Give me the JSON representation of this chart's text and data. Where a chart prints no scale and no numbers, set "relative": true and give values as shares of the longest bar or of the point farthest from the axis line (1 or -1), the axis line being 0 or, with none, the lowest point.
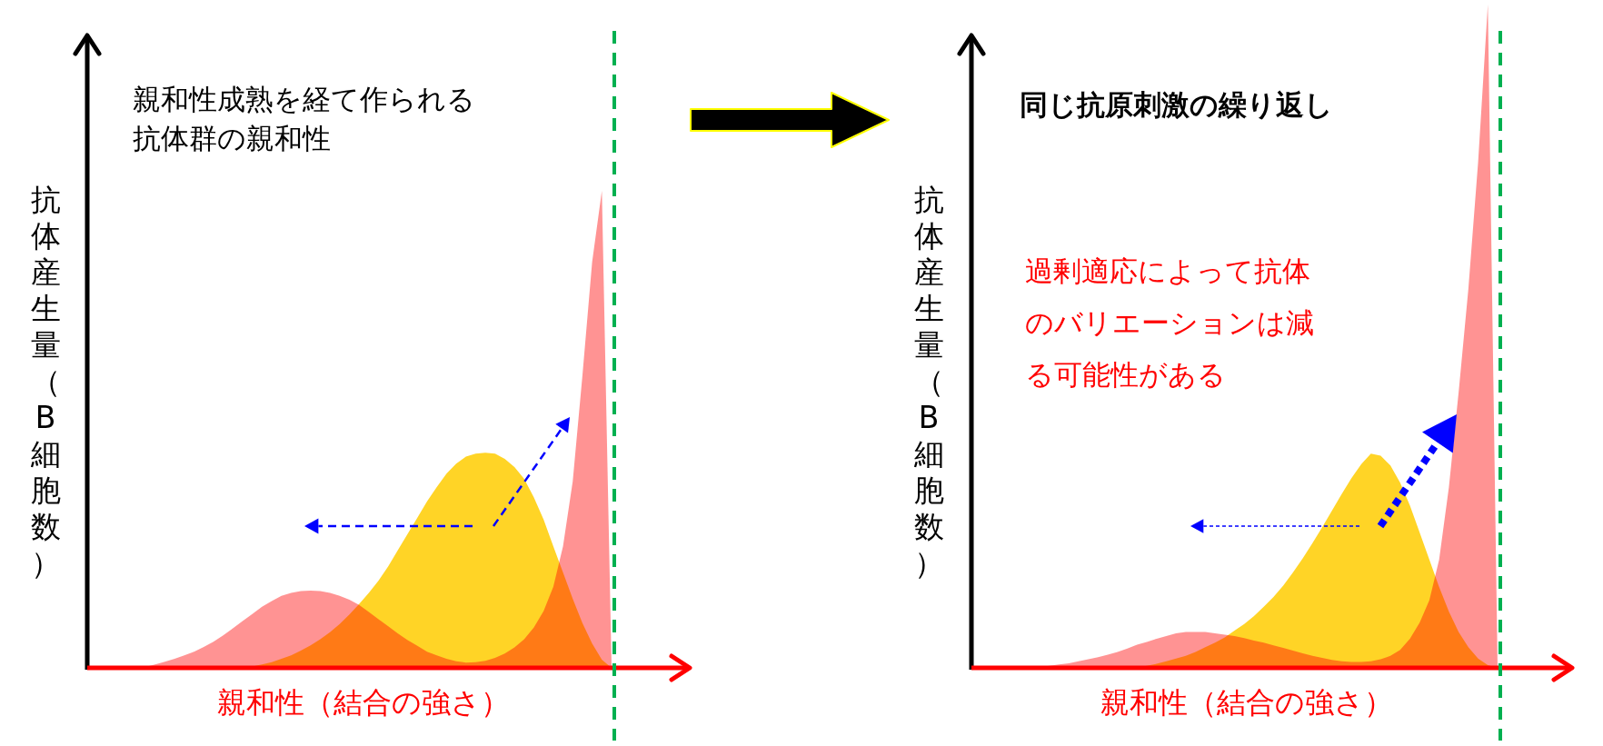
{
  "chart_data": [
    {
      "type": "area",
      "relative": true,
      "title": "親和性成熟を経て作られる抗体群の親和性",
      "xlabel": "親和性（結合の強さ）",
      "ylabel": "抗体産生量（B細胞数）",
      "categories": [
        null,
        null,
        null,
        null,
        null,
        null,
        null,
        null,
        null,
        null,
        null,
        null,
        null,
        null,
        null,
        null,
        null,
        null,
        null,
        null,
        null,
        null,
        null,
        null,
        null,
        null,
        null,
        null,
        null,
        null,
        null,
        null,
        null,
        null,
        null,
        null,
        null,
        null,
        null,
        null,
        null,
        null,
        null,
        null,
        null,
        null,
        null,
        null,
        null,
        null,
        null,
        null,
        null,
        null,
        null
      ],
      "series": [
        {
          "color": "#ffcc00",
          "values": [
            0,
            0,
            0,
            0,
            0,
            0,
            0,
            0,
            0,
            0,
            0,
            0,
            0,
            0,
            0,
            0,
            0,
            0.003,
            0.007,
            0.012,
            0.019,
            0.026,
            0.036,
            0.047,
            0.06,
            0.075,
            0.092,
            0.112,
            0.134,
            0.157,
            0.183,
            0.213,
            0.247,
            0.281,
            0.315,
            0.349,
            0.379,
            0.407,
            0.428,
            0.443,
            0.449,
            0.451,
            0.449,
            0.438,
            0.421,
            0.396,
            0.357,
            0.311,
            0.255,
            0.2,
            0.145,
            0.094,
            0.051,
            0.017,
            0
          ]
        },
        {
          "color": "#ff8080",
          "values": [
            0,
            0,
            0,
            0,
            0,
            0,
            0.002,
            0.007,
            0.013,
            0.019,
            0.026,
            0.034,
            0.044,
            0.055,
            0.068,
            0.083,
            0.098,
            0.113,
            0.128,
            0.14,
            0.151,
            0.157,
            0.161,
            0.162,
            0.161,
            0.157,
            0.151,
            0.143,
            0.132,
            0.117,
            0.102,
            0.087,
            0.072,
            0.058,
            0.046,
            0.034,
            0.026,
            0.019,
            0.014,
            0.011,
            0.012,
            0.015,
            0.021,
            0.03,
            0.043,
            0.06,
            0.085,
            0.119,
            0.17,
            0.255,
            0.391,
            0.613,
            0.851,
            1,
            0
          ]
        }
      ]
    },
    {
      "type": "area",
      "relative": true,
      "title": "同じ抗原刺激の繰り返し",
      "xlabel": "親和性（結合の強さ）",
      "ylabel": "抗体産生量（B細胞数）",
      "annotations": [
        "過剰適応によって抗体のバリエーションは減る可能性がある"
      ],
      "categories": [
        null,
        null,
        null,
        null,
        null,
        null,
        null,
        null,
        null,
        null,
        null,
        null,
        null,
        null,
        null,
        null,
        null,
        null,
        null,
        null,
        null,
        null,
        null,
        null,
        null,
        null,
        null,
        null,
        null,
        null,
        null,
        null,
        null,
        null,
        null,
        null,
        null,
        null,
        null,
        null,
        null,
        null,
        null,
        null,
        null,
        null,
        null,
        null,
        null,
        null,
        null,
        null,
        null,
        null,
        null
      ],
      "series": [
        {
          "color": "#ffcc00",
          "values": [
            0,
            0,
            0,
            0,
            0,
            0,
            0,
            0,
            0,
            0,
            0,
            0,
            0,
            0,
            0,
            0,
            0,
            0.001,
            0.003,
            0.006,
            0.01,
            0.014,
            0.018,
            0.024,
            0.031,
            0.038,
            0.046,
            0.056,
            0.066,
            0.078,
            0.092,
            0.107,
            0.124,
            0.144,
            0.165,
            0.188,
            0.212,
            0.237,
            0.262,
            0.286,
            0.307,
            0.323,
            0.32,
            0.305,
            0.279,
            0.245,
            0.204,
            0.163,
            0.122,
            0.085,
            0.054,
            0.031,
            0.014,
            0.004,
            0
          ]
        },
        {
          "color": "#ff8080",
          "values": [
            0,
            0,
            0,
            0,
            0,
            0,
            0,
            0.001,
            0.003,
            0.005,
            0.007,
            0.01,
            0.013,
            0.016,
            0.02,
            0.024,
            0.029,
            0.035,
            0.039,
            0.044,
            0.048,
            0.052,
            0.054,
            0.054,
            0.054,
            0.052,
            0.05,
            0.048,
            0.045,
            0.041,
            0.038,
            0.034,
            0.03,
            0.026,
            0.022,
            0.018,
            0.015,
            0.012,
            0.01,
            0.009,
            0.009,
            0.01,
            0.013,
            0.018,
            0.027,
            0.044,
            0.068,
            0.102,
            0.163,
            0.272,
            0.415,
            0.571,
            0.762,
            1,
            0
          ]
        }
      ]
    }
  ]
}
